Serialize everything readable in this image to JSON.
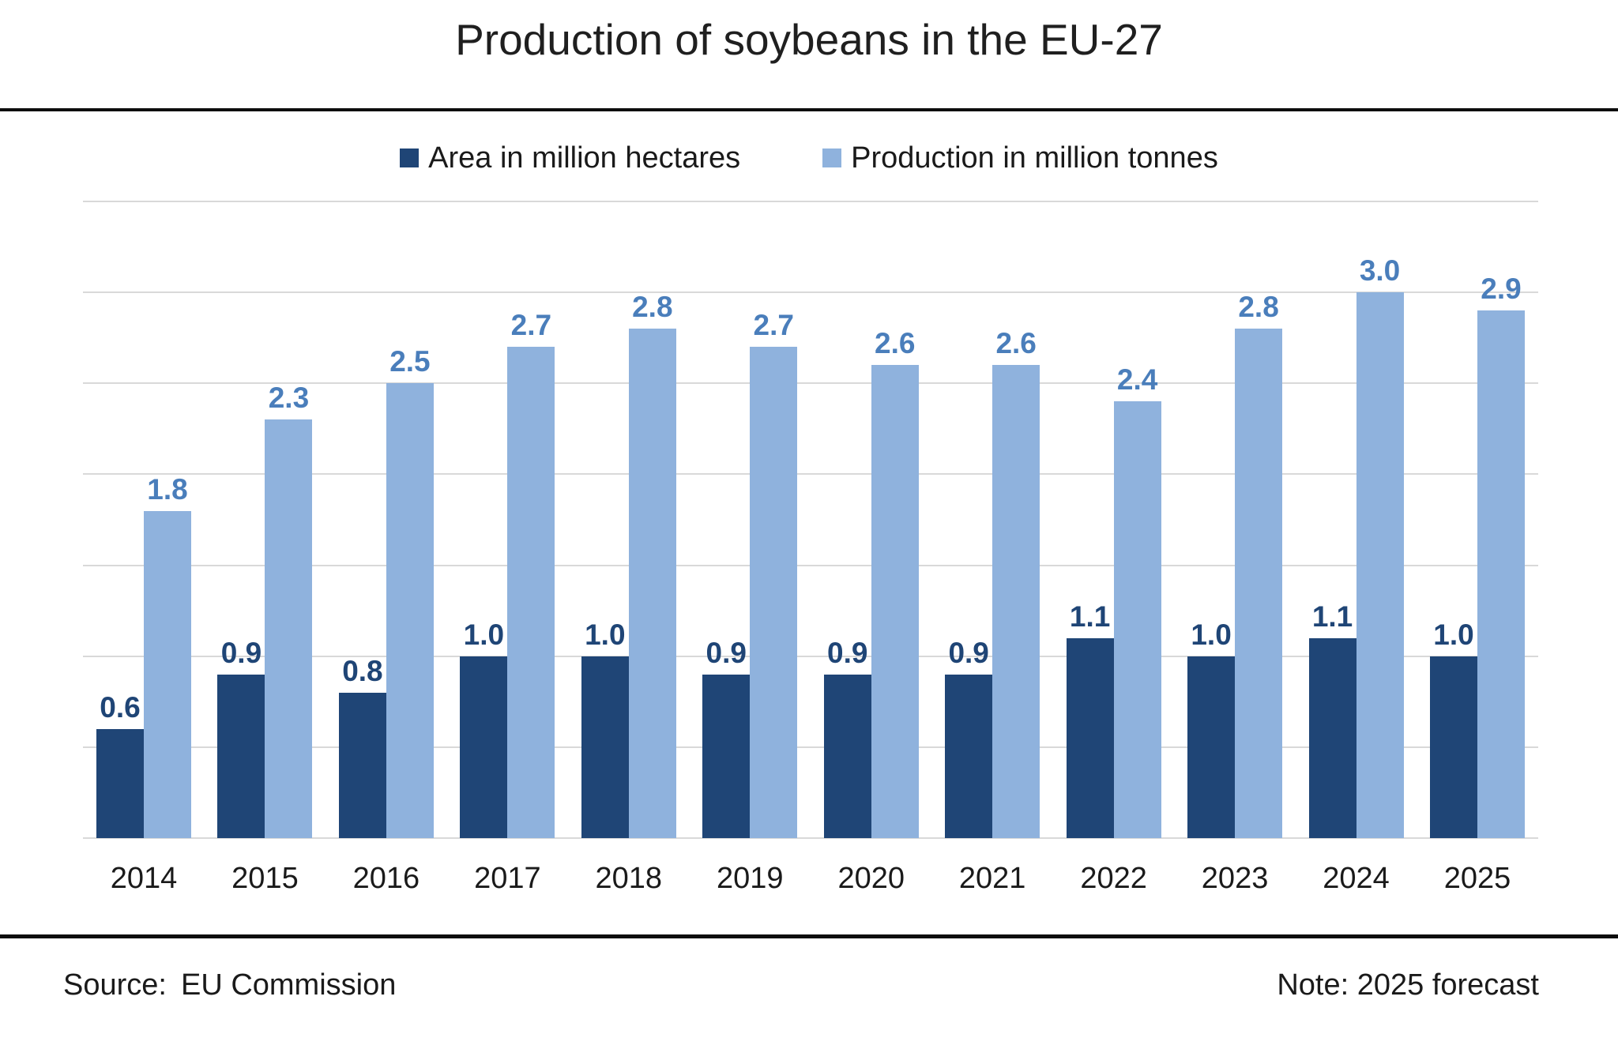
{
  "page": {
    "title": "Production of soybeans in the EU-27",
    "source": {
      "label": "Source:",
      "value": "EU Commission"
    },
    "note": "Note: 2025 forecast"
  },
  "chart_data": {
    "type": "bar",
    "title": "Production of soybeans in the EU-27",
    "categories": [
      "2014",
      "2015",
      "2016",
      "2017",
      "2018",
      "2019",
      "2020",
      "2021",
      "2022",
      "2023",
      "2024",
      "2025"
    ],
    "series": [
      {
        "name": "Area in million hectares",
        "color": "#1F4576",
        "label_color": "#1F4576",
        "values": [
          0.6,
          0.9,
          0.8,
          1.0,
          1.0,
          0.9,
          0.9,
          0.9,
          1.1,
          1.0,
          1.1,
          1.0
        ]
      },
      {
        "name": "Production in million tonnes",
        "color": "#8FB2DD",
        "label_color": "#4A7EBB",
        "values": [
          1.8,
          2.3,
          2.5,
          2.7,
          2.8,
          2.7,
          2.6,
          2.6,
          2.4,
          2.8,
          3.0,
          2.9
        ]
      }
    ],
    "xlabel": "",
    "ylabel": "",
    "ylim": [
      0,
      3.5
    ],
    "gridline_step": 0.5,
    "grid": true,
    "gridline_color": "#D9D9D9",
    "legend_position": "top",
    "value_label_decimals": 1
  }
}
